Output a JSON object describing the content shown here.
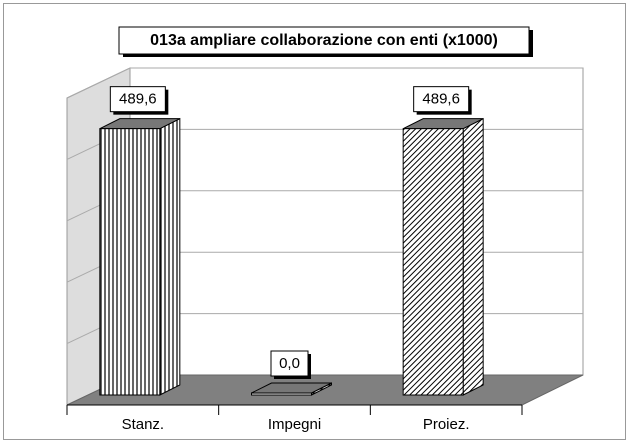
{
  "chart_data": {
    "type": "bar3d",
    "title": "013a ampliare collaborazione con enti (x1000)",
    "categories": [
      "Stanz.",
      "Impegni",
      "Proiez."
    ],
    "values": [
      489.6,
      0.0,
      489.6
    ],
    "value_labels": [
      "489,6",
      "0,0",
      "489,6"
    ],
    "ylim": [
      0,
      500
    ],
    "yticks": [
      0,
      100,
      200,
      300,
      400,
      500
    ],
    "grid": true
  }
}
